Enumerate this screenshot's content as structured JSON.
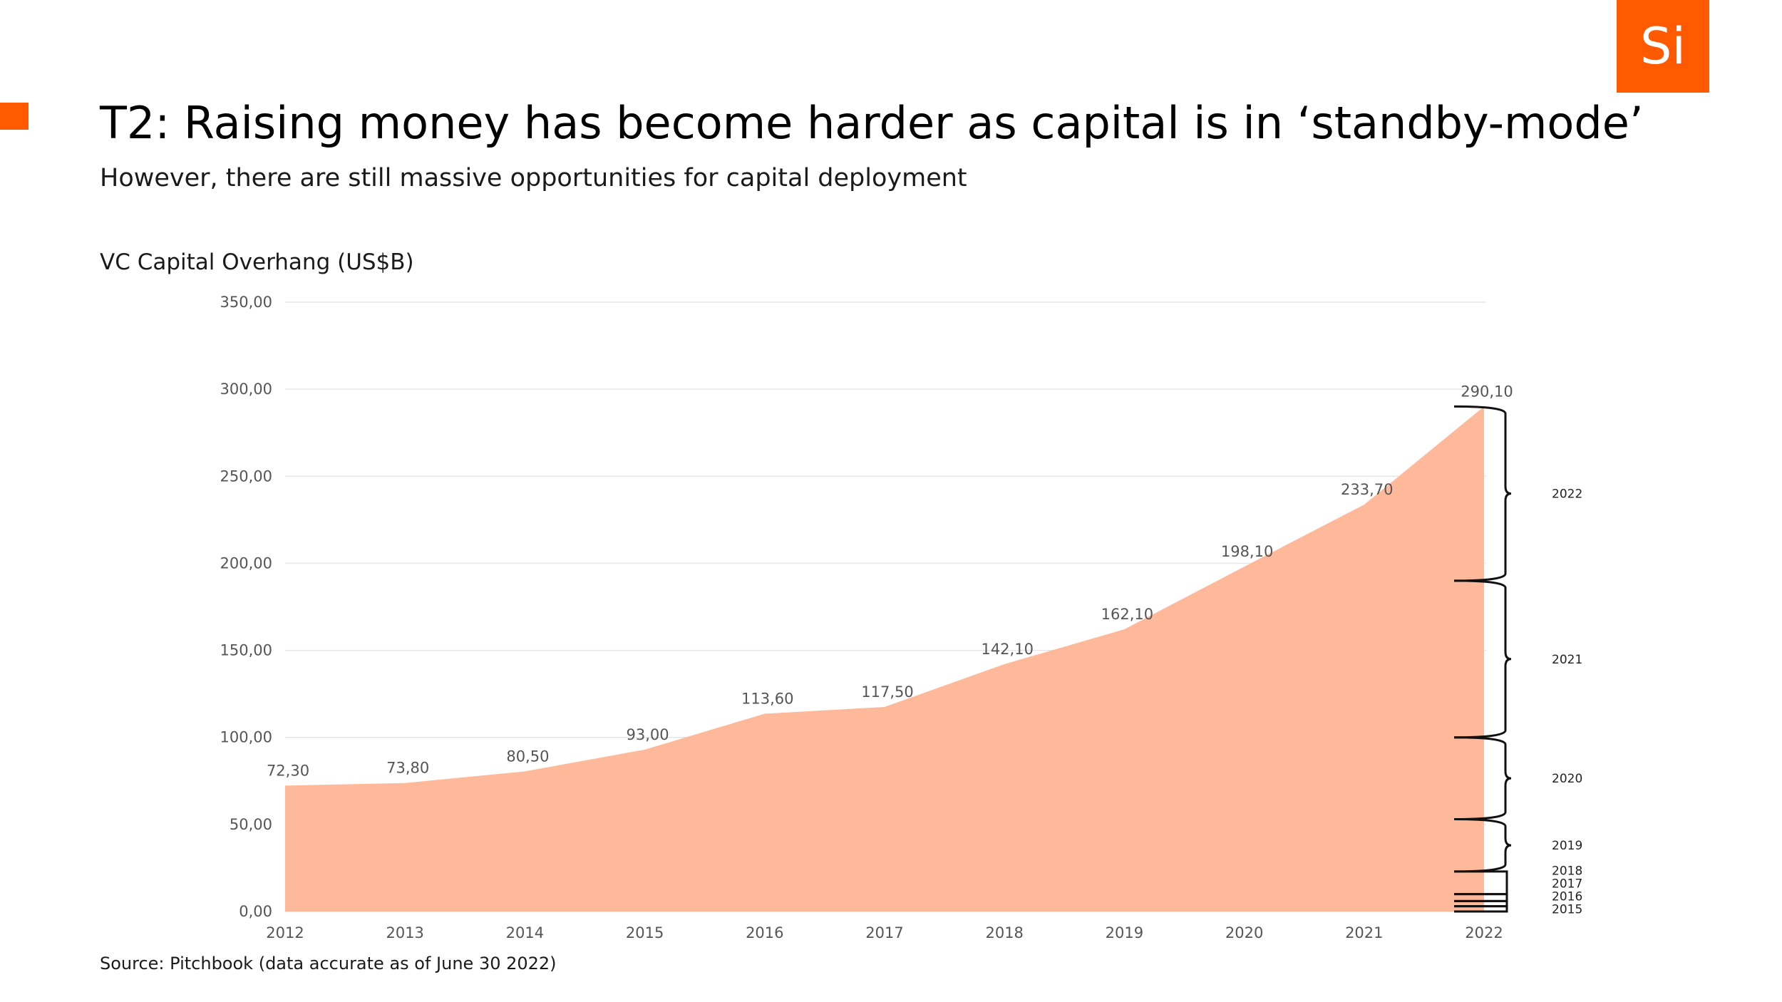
{
  "header": {
    "logo_text": "Si",
    "title": "T2: Raising money has become harder as capital is in ‘standby-mode’",
    "subtitle": "However, there are still massive opportunities for capital deployment"
  },
  "footer": {
    "source": "Source: Pitchbook (data accurate as of June 30 2022)"
  },
  "colors": {
    "accent": "#ff5a00",
    "area_fill": "#feb99a",
    "grid": "#e6e6e6",
    "brace": "#111111"
  },
  "chart_data": {
    "type": "area",
    "title": "VC Capital Overhang (US$B)",
    "x": [
      "2012",
      "2013",
      "2014",
      "2015",
      "2016",
      "2017",
      "2018",
      "2019",
      "2020",
      "2021",
      "2022"
    ],
    "values": [
      72.3,
      73.8,
      80.5,
      93.0,
      113.6,
      117.5,
      142.1,
      162.1,
      198.1,
      233.7,
      290.1
    ],
    "data_labels": [
      "72,30",
      "73,80",
      "80,50",
      "93,00",
      "113,60",
      "117,50",
      "142,10",
      "162,10",
      "198,10",
      "233,70",
      "290,10"
    ],
    "ylim": [
      0,
      350
    ],
    "yticks": [
      0,
      50,
      100,
      150,
      200,
      250,
      300,
      350
    ],
    "ytick_labels": [
      "0,00",
      "50,00",
      "100,00",
      "150,00",
      "200,00",
      "250,00",
      "300,00",
      "350,00"
    ],
    "grid": true,
    "legend": "none",
    "vintage_breakdown": [
      {
        "label": "2015",
        "from": 0,
        "to": 3
      },
      {
        "label": "2016",
        "from": 3,
        "to": 6
      },
      {
        "label": "2017",
        "from": 6,
        "to": 10
      },
      {
        "label": "2018",
        "from": 10,
        "to": 23
      },
      {
        "label": "2019",
        "from": 23,
        "to": 53
      },
      {
        "label": "2020",
        "from": 53,
        "to": 100
      },
      {
        "label": "2021",
        "from": 100,
        "to": 190
      },
      {
        "label": "2022",
        "from": 190,
        "to": 290.1
      }
    ]
  }
}
